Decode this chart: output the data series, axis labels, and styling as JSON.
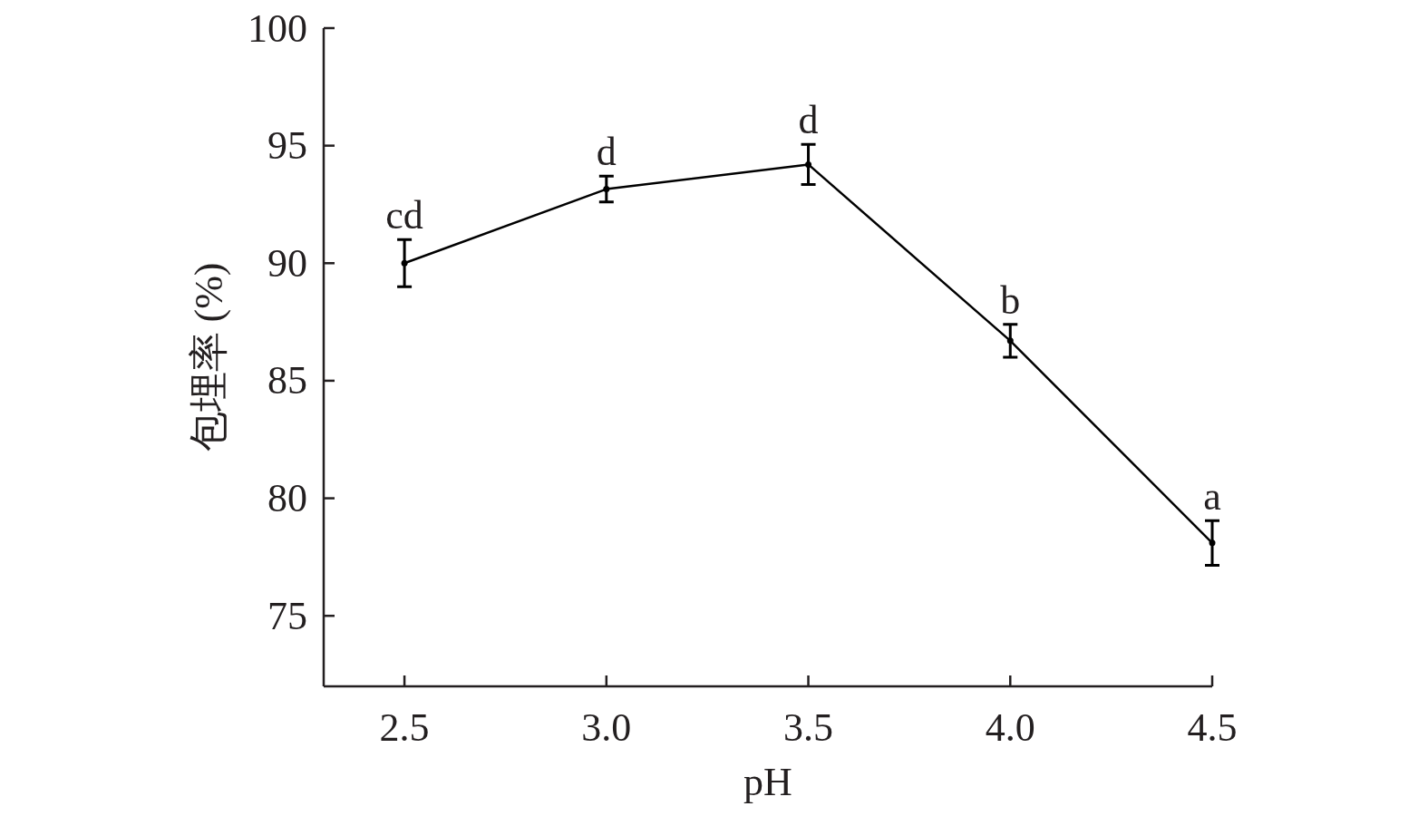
{
  "chart_data": {
    "type": "line",
    "xlabel": "pH",
    "ylabel": "包埋率 (%)",
    "x": [
      2.5,
      3.0,
      3.5,
      4.0,
      4.5
    ],
    "series": [
      {
        "color": "#000000",
        "values": [
          90.0,
          93.15,
          94.2,
          86.7,
          78.1
        ],
        "errors": [
          1.0,
          0.55,
          0.85,
          0.7,
          0.95
        ]
      }
    ],
    "xlim": [
      2.3,
      4.5
    ],
    "xticks": [
      {
        "value": 2.5,
        "label": "2.5"
      },
      {
        "value": 3.0,
        "label": "3.0"
      },
      {
        "value": 3.5,
        "label": "3.5"
      },
      {
        "value": 4.0,
        "label": "4.0"
      },
      {
        "value": 4.5,
        "label": "4.5"
      }
    ],
    "ylim": [
      72,
      100
    ],
    "yticks": [
      75,
      80,
      85,
      90,
      95,
      100
    ],
    "annotations": [
      {
        "text": "cd",
        "x": 2.5,
        "y": 90.0
      },
      {
        "text": "d",
        "x": 3.0,
        "y": 93.15
      },
      {
        "text": "d",
        "x": 3.5,
        "y": 94.2
      },
      {
        "text": "b",
        "x": 4.0,
        "y": 86.7
      },
      {
        "text": "a",
        "x": 4.5,
        "y": 78.1
      }
    ],
    "grid": false,
    "marker": "circle",
    "line_style": "solid"
  }
}
